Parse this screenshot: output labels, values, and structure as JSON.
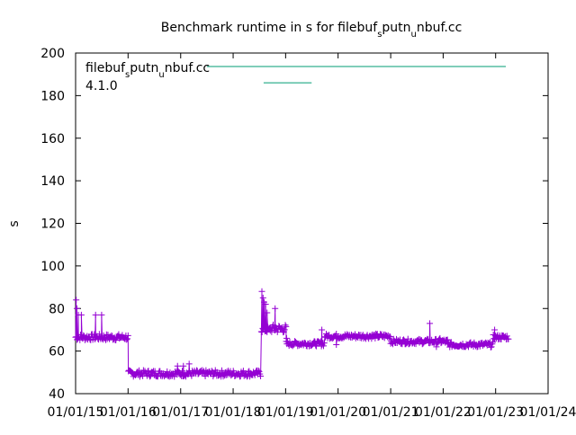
{
  "chart_data": {
    "type": "scatter",
    "title_parts": {
      "a": "Benchmark runtime in s for filebuf",
      "b": "s",
      "c": "putn",
      "d": "u",
      "e": "nbuf.cc"
    },
    "ylabel": "s",
    "xlabel": "",
    "ylim": [
      40,
      200
    ],
    "yticks": [
      40,
      60,
      80,
      100,
      120,
      140,
      160,
      180,
      200
    ],
    "xlim": [
      "2015-01-01",
      "2024-01-01"
    ],
    "xtick_labels": [
      "01/01/15",
      "01/01/16",
      "01/01/17",
      "01/01/18",
      "01/01/19",
      "01/01/20",
      "01/01/21",
      "01/01/22",
      "01/01/23",
      "01/01/24"
    ],
    "xtick_dates": [
      "2015-01-01",
      "2016-01-01",
      "2017-01-01",
      "2018-01-01",
      "2019-01-01",
      "2020-01-01",
      "2021-01-01",
      "2022-01-01",
      "2023-01-01",
      "2024-01-01"
    ],
    "grid": false,
    "legend": {
      "placement": "top-left",
      "entries": [
        {
          "parts": {
            "a": "filebuf",
            "b": "s",
            "c": "putn",
            "d": "u",
            "e": "nbuf.cc"
          },
          "color": "#009e73",
          "marker": "line"
        },
        {
          "label": "4.1.0",
          "color": "#009e73",
          "marker": "line"
        }
      ]
    },
    "series": [
      {
        "color": "#9400d3",
        "marker": "plus",
        "segments": [
          {
            "start": "2015-01-01",
            "end": "2016-01-02",
            "y": 66.5,
            "spread": 1.5
          },
          {
            "start": "2016-01-03",
            "end": "2018-07-15",
            "y": 49.5,
            "spread": 1.5
          },
          {
            "start": "2018-07-16",
            "end": "2018-09-15",
            "y": 70,
            "spread": 1.5
          },
          {
            "start": "2018-09-16",
            "end": "2019-01-04",
            "y": 70.5,
            "spread": 2.0
          },
          {
            "start": "2019-01-05",
            "end": "2019-09-30",
            "y": 63.5,
            "spread": 1.2
          },
          {
            "start": "2019-10-01",
            "end": "2020-12-31",
            "y": 67,
            "spread": 1.2
          },
          {
            "start": "2021-01-01",
            "end": "2022-01-31",
            "y": 64.5,
            "spread": 1.2
          },
          {
            "start": "2022-02-01",
            "end": "2022-12-15",
            "y": 63,
            "spread": 1.2
          },
          {
            "start": "2022-12-16",
            "end": "2023-03-31",
            "y": 66.5,
            "spread": 1.2
          }
        ],
        "outliers": [
          {
            "x": "2015-01-05",
            "y": 84
          },
          {
            "x": "2015-01-10",
            "y": 80
          },
          {
            "x": "2015-01-20",
            "y": 77
          },
          {
            "x": "2015-02-10",
            "y": 77
          },
          {
            "x": "2015-05-20",
            "y": 77
          },
          {
            "x": "2015-07-01",
            "y": 77
          },
          {
            "x": "2016-12-10",
            "y": 53
          },
          {
            "x": "2017-01-20",
            "y": 53
          },
          {
            "x": "2017-03-01",
            "y": 54
          },
          {
            "x": "2018-07-20",
            "y": 88
          },
          {
            "x": "2018-07-28",
            "y": 85
          },
          {
            "x": "2018-08-05",
            "y": 83
          },
          {
            "x": "2018-08-15",
            "y": 82
          },
          {
            "x": "2018-08-25",
            "y": 78
          },
          {
            "x": "2018-10-20",
            "y": 80
          },
          {
            "x": "2019-01-08",
            "y": 66
          },
          {
            "x": "2019-09-10",
            "y": 70
          },
          {
            "x": "2019-12-20",
            "y": 63
          },
          {
            "x": "2021-09-30",
            "y": 73
          },
          {
            "x": "2021-11-15",
            "y": 62
          },
          {
            "x": "2021-12-10",
            "y": 66
          },
          {
            "x": "2022-12-25",
            "y": 70
          }
        ]
      },
      {
        "name": "4.1.0",
        "color": "#009e73",
        "marker": "none",
        "points": [
          {
            "x": "2018-08-01",
            "y": 186
          },
          {
            "x": "2019-07-01",
            "y": 186
          }
        ]
      }
    ]
  }
}
